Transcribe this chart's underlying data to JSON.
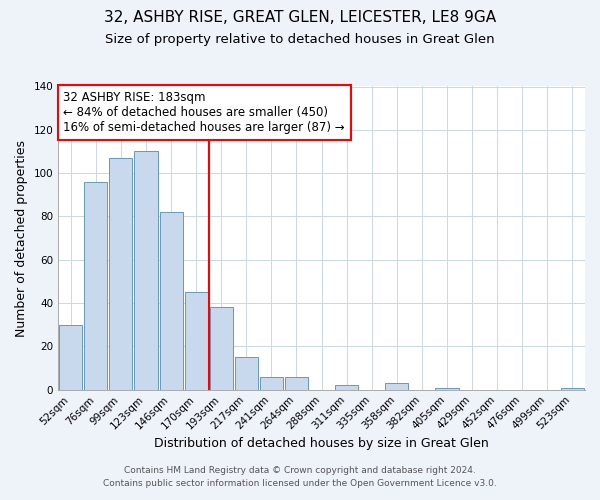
{
  "title1": "32, ASHBY RISE, GREAT GLEN, LEICESTER, LE8 9GA",
  "title2": "Size of property relative to detached houses in Great Glen",
  "xlabel": "Distribution of detached houses by size in Great Glen",
  "ylabel": "Number of detached properties",
  "bar_labels": [
    "52sqm",
    "76sqm",
    "99sqm",
    "123sqm",
    "146sqm",
    "170sqm",
    "193sqm",
    "217sqm",
    "241sqm",
    "264sqm",
    "288sqm",
    "311sqm",
    "335sqm",
    "358sqm",
    "382sqm",
    "405sqm",
    "429sqm",
    "452sqm",
    "476sqm",
    "499sqm",
    "523sqm"
  ],
  "bar_values": [
    30,
    96,
    107,
    110,
    82,
    45,
    38,
    15,
    6,
    6,
    0,
    2,
    0,
    3,
    0,
    1,
    0,
    0,
    0,
    0,
    1
  ],
  "bar_color": "#c8d9ed",
  "bar_edge_color": "#6699bb",
  "vline_color": "red",
  "annotation_line1": "32 ASHBY RISE: 183sqm",
  "annotation_line2": "← 84% of detached houses are smaller (450)",
  "annotation_line3": "16% of semi-detached houses are larger (87) →",
  "annotation_box_edge": "red",
  "annotation_fontsize": 8.5,
  "ylim": [
    0,
    140
  ],
  "yticks": [
    0,
    20,
    40,
    60,
    80,
    100,
    120,
    140
  ],
  "footer1": "Contains HM Land Registry data © Crown copyright and database right 2024.",
  "footer2": "Contains public sector information licensed under the Open Government Licence v3.0.",
  "bg_color": "#eef3f9",
  "plot_bg_color": "#ffffff",
  "title1_fontsize": 11,
  "title2_fontsize": 9.5,
  "tick_fontsize": 7.5,
  "ylabel_fontsize": 9,
  "xlabel_fontsize": 9,
  "footer_fontsize": 6.5,
  "grid_color": "#c8d8e8"
}
